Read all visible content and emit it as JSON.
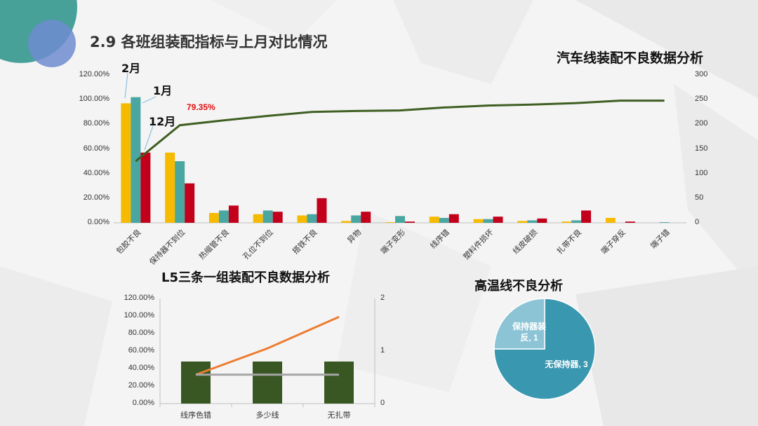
{
  "slide": {
    "title": "2.9 各班组装配指标与上月对比情况"
  },
  "colors": {
    "month_feb": "#f6bb00",
    "month_jan": "#4aa6a0",
    "month_dec": "#c2001b",
    "cumulative_line": "#3f5f22",
    "l5_bar": "#385723",
    "l5_line_orange": "#ed7d31",
    "l5_line_gray": "#a5a5a5",
    "pie_main": "#3a97b0",
    "pie_small": "#8cc4d6",
    "pct_label": "#e01010"
  },
  "chart_data": [
    {
      "id": "auto-line",
      "type": "bar",
      "title": "汽车线装配不良数据分析",
      "categories": [
        "包胶不良",
        "保持器不到位",
        "热缩管不良",
        "孔位不到位",
        "搭铁不良",
        "异物",
        "端子变形",
        "线序错",
        "塑料件损坏",
        "线皮破损",
        "扎带不良",
        "端子穿反",
        "端子错"
      ],
      "series": [
        {
          "name": "2月",
          "axis": "left",
          "values": [
            97,
            57,
            8,
            7,
            6,
            1.5,
            0.5,
            5,
            3,
            1.5,
            1,
            4,
            0
          ]
        },
        {
          "name": "1月",
          "axis": "left",
          "values": [
            102,
            50,
            10,
            10,
            7,
            6,
            5.5,
            4,
            3,
            2,
            2,
            0,
            0.5
          ]
        },
        {
          "name": "12月",
          "axis": "left",
          "values": [
            57,
            32,
            14,
            9,
            20,
            9,
            1,
            7,
            5,
            3.5,
            10,
            1,
            0
          ]
        },
        {
          "axis": "right",
          "type": "line",
          "values": [
            125,
            198,
            208,
            217,
            225,
            227,
            228,
            234,
            238,
            240,
            243,
            248,
            248
          ]
        }
      ],
      "ylim_left": [
        0,
        120
      ],
      "ylim_right": [
        0,
        300
      ],
      "yticks_left": [
        "0.00%",
        "20.00%",
        "40.00%",
        "60.00%",
        "80.00%",
        "100.00%",
        "120.00%"
      ],
      "yticks_right": [
        "0",
        "50",
        "100",
        "150",
        "200",
        "250",
        "300"
      ],
      "annotations": {
        "label_feb": "2月",
        "label_jan": "1月",
        "label_dec": "12月",
        "cumulative_pct": "79.35%"
      }
    },
    {
      "id": "l5-group",
      "type": "bar",
      "title": "L5三条一组装配不良数据分析",
      "categories": [
        "线序色错",
        "多少线",
        "无扎带"
      ],
      "series": [
        {
          "axis": "right",
          "values": [
            0.8,
            0.8,
            0.8
          ]
        },
        {
          "axis": "right",
          "type": "line",
          "values": [
            0.55,
            1.05,
            1.65
          ]
        },
        {
          "axis": "right",
          "type": "line",
          "values": [
            0.55,
            0.55,
            0.55
          ]
        }
      ],
      "ylim_left": [
        0,
        120
      ],
      "ylim_right": [
        0,
        2
      ],
      "yticks_left": [
        "0.00%",
        "20.00%",
        "40.00%",
        "60.00%",
        "80.00%",
        "100.00%",
        "120.00%"
      ],
      "yticks_right": [
        "0",
        "1",
        "2"
      ]
    },
    {
      "id": "high-temp",
      "type": "pie",
      "title": "高温线不良分析",
      "slices": [
        {
          "label": "无保持器",
          "value": 3,
          "text": "无保持器, 3"
        },
        {
          "label": "保持器装反",
          "value": 1,
          "text": "保持器装反, 1"
        }
      ]
    }
  ]
}
